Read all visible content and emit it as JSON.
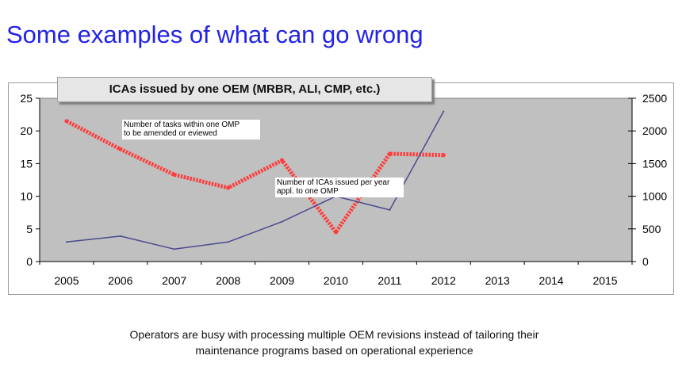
{
  "slide": {
    "title": "Some examples of what can go wrong",
    "caption_line1": "Operators are busy with processing multiple OEM revisions instead of tailoring their",
    "caption_line2": "maintenance programs based on operational experience"
  },
  "chart_data": {
    "type": "line",
    "title": "ICAs issued by one OEM (MRBR, ALI, CMP, etc.)",
    "x": [
      "2005",
      "2006",
      "2007",
      "2008",
      "2009",
      "2010",
      "2011",
      "2012",
      "2013",
      "2014",
      "2015"
    ],
    "yticks_left": [
      "0",
      "5",
      "10",
      "15",
      "20",
      "25"
    ],
    "yticks_right": [
      "0",
      "500",
      "1000",
      "1500",
      "2000",
      "2500"
    ],
    "ylim_left": [
      0,
      25
    ],
    "ylim_right": [
      0,
      2500
    ],
    "grid": false,
    "background": "#c0c0c0",
    "series": [
      {
        "name": "Number of tasks within one OMP to be amended or eviewed",
        "axis": "left",
        "color": "#ff3b3b",
        "values": [
          21.5,
          17.2,
          13.3,
          11.3,
          15.5,
          4.5,
          16.5,
          16.3,
          null,
          null,
          null
        ]
      },
      {
        "name": "Number of ICAs issued per year appl. to one OMP",
        "axis": "right",
        "color": "#4a4a90",
        "values": [
          300,
          390,
          190,
          300,
          610,
          1000,
          790,
          2300,
          null,
          null,
          null
        ]
      }
    ],
    "annotations": [
      {
        "line1": "Number of tasks within one OMP",
        "line2": "to be amended or eviewed"
      },
      {
        "line1": "Number of ICAs issued per year",
        "line2": "appl. to one OMP"
      }
    ]
  }
}
